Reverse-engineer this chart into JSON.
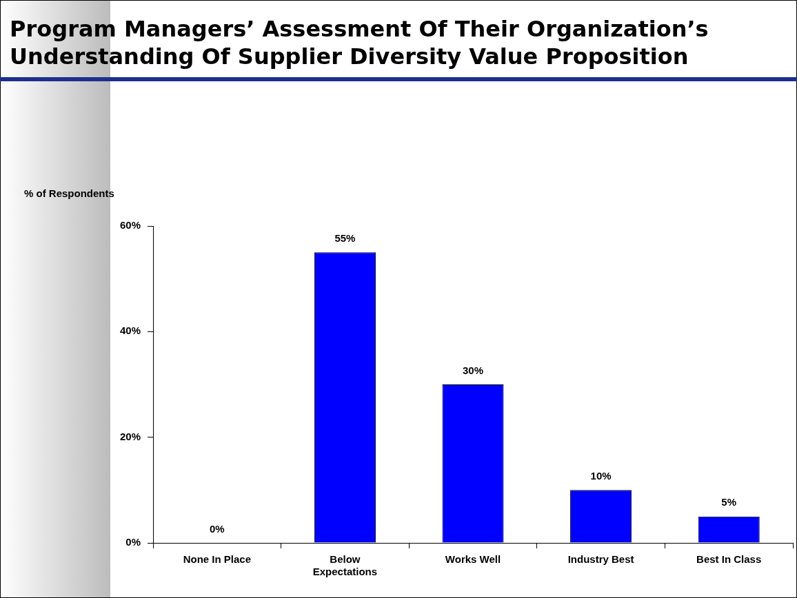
{
  "chart_data": {
    "type": "bar",
    "title": "Program Managers’ Assessment Of Their Organization’s Understanding Of Supplier Diversity Value Proposition",
    "ylabel": "% of Respondents",
    "categories": [
      "None In Place",
      "Below Expectations",
      "Works Well",
      "Industry Best",
      "Best In Class"
    ],
    "values": [
      0,
      55,
      30,
      10,
      5
    ],
    "color": "#0000ff",
    "ylim": [
      0,
      60
    ],
    "yticks": [
      {
        "value": 0,
        "label": "0%"
      },
      {
        "value": 20,
        "label": "20%"
      },
      {
        "value": 40,
        "label": "40%"
      },
      {
        "value": 60,
        "label": "60%"
      }
    ],
    "data_labels": true,
    "value_labels": [
      "0%",
      "55%",
      "30%",
      "10%",
      "5%"
    ],
    "grid": false,
    "legend": false
  }
}
